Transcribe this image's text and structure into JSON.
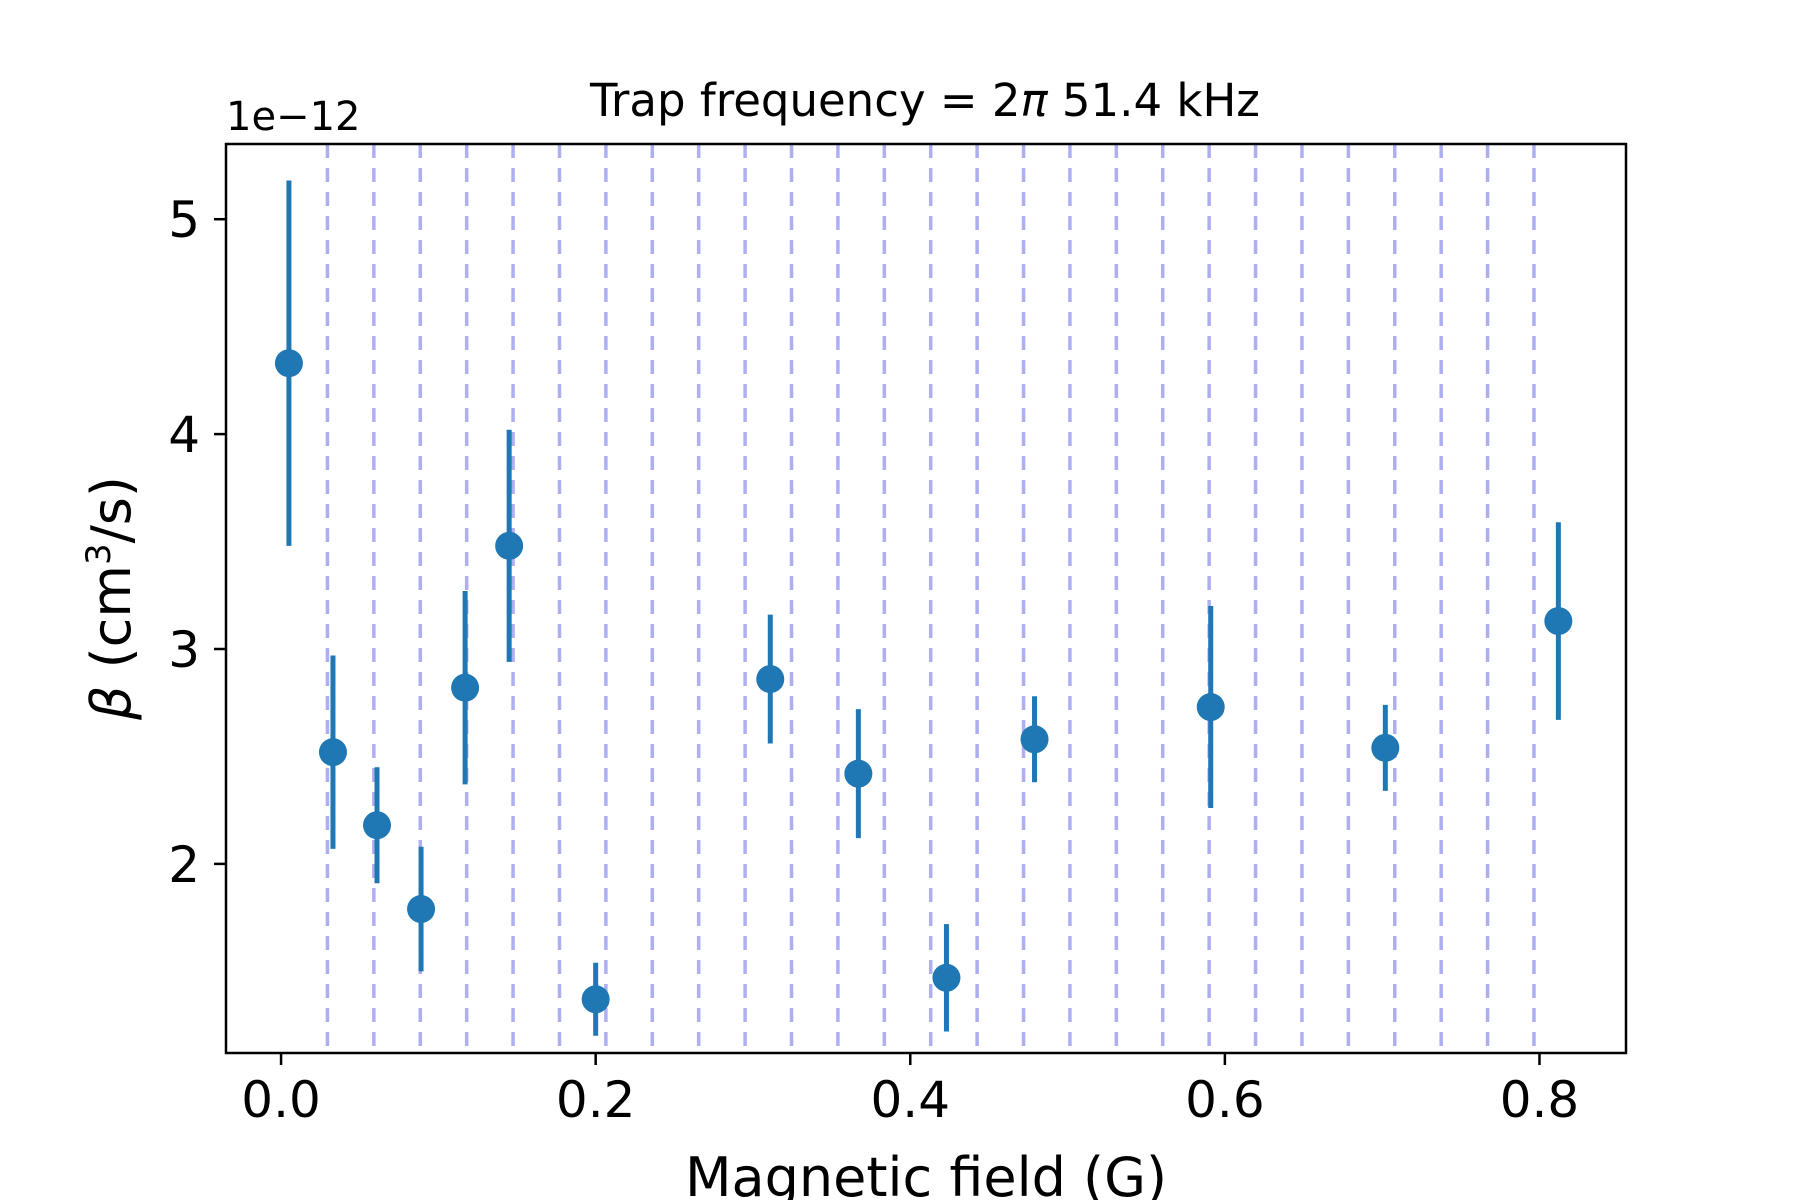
{
  "chart_data": {
    "type": "scatter",
    "title_prefix": "Trap frequency = 2",
    "title_symbol": "π",
    "title_suffix": " 51.4 kHz",
    "xlabel": "Magnetic field (G)",
    "ylabel_symbol": "β",
    "ylabel_prefix": " (cm",
    "ylabel_sup": "3",
    "ylabel_suffix": "/s)",
    "y_offset_text": "1e−12",
    "xlim": [
      -0.035,
      0.855
    ],
    "ylim": [
      1.12,
      5.35
    ],
    "x_ticks": [
      0.0,
      0.2,
      0.4,
      0.6,
      0.8
    ],
    "x_tick_labels": [
      "0.0",
      "0.2",
      "0.4",
      "0.6",
      "0.8"
    ],
    "y_ticks": [
      2,
      3,
      4,
      5
    ],
    "y_tick_labels": [
      "2",
      "3",
      "4",
      "5"
    ],
    "marker_color": "#1f77b4",
    "vline_color": "#aeaef5",
    "vlines": [
      0.0295,
      0.059,
      0.0885,
      0.118,
      0.1475,
      0.177,
      0.2065,
      0.236,
      0.2655,
      0.295,
      0.3245,
      0.354,
      0.3835,
      0.413,
      0.4425,
      0.472,
      0.5015,
      0.531,
      0.5605,
      0.59,
      0.6195,
      0.649,
      0.6785,
      0.708,
      0.7375,
      0.767,
      0.7965
    ],
    "points": [
      {
        "x": 0.005,
        "y": 4.33,
        "err": 0.85
      },
      {
        "x": 0.033,
        "y": 2.52,
        "err": 0.45
      },
      {
        "x": 0.061,
        "y": 2.18,
        "err": 0.27
      },
      {
        "x": 0.089,
        "y": 1.79,
        "err": 0.29
      },
      {
        "x": 0.117,
        "y": 2.82,
        "err": 0.45
      },
      {
        "x": 0.145,
        "y": 3.48,
        "err": 0.54
      },
      {
        "x": 0.2,
        "y": 1.37,
        "err": 0.17
      },
      {
        "x": 0.311,
        "y": 2.86,
        "err": 0.3
      },
      {
        "x": 0.367,
        "y": 2.42,
        "err": 0.3
      },
      {
        "x": 0.423,
        "y": 1.47,
        "err": 0.25
      },
      {
        "x": 0.479,
        "y": 2.58,
        "err": 0.2
      },
      {
        "x": 0.591,
        "y": 2.73,
        "err": 0.47
      },
      {
        "x": 0.702,
        "y": 2.54,
        "err": 0.2
      },
      {
        "x": 0.812,
        "y": 3.13,
        "err": 0.46
      }
    ]
  }
}
